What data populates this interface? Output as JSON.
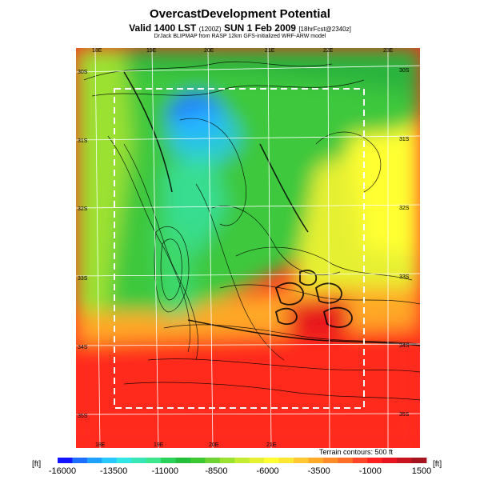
{
  "header": {
    "title": "OvercastDevelopment Potential",
    "valid_label": "Valid 1400 LST",
    "valid_code": "(1200Z)",
    "valid_date": "SUN 1 Feb 2009",
    "forecast_code": "[18hrFcst@2340z]",
    "credit": "DrJack BLIPMAP from RASP 12km GFS-initialized WRF-ARW model"
  },
  "map": {
    "lon_labels_top": [
      "18E",
      "19E",
      "20E",
      "21E",
      "22E",
      "23E"
    ],
    "lon_labels_bottom": [
      "18E",
      "19E",
      "20E",
      "21E"
    ],
    "lat_labels_left": [
      "30S",
      "31S",
      "32S",
      "33S",
      "34S",
      "35S"
    ],
    "lat_labels_right": [
      "30S",
      "31S",
      "32S",
      "33S",
      "34S",
      "35S"
    ]
  },
  "terrain_note": "Terrain contours: 500 ft",
  "legend": {
    "unit_left": "[ft]",
    "unit_right": "[ft]",
    "tick_labels": [
      "-16000",
      "-13500",
      "-11000",
      "-8500",
      "-6000",
      "-3500",
      "-1000",
      "1500"
    ],
    "colors": [
      "#1414ff",
      "#1e6eff",
      "#1ea0ff",
      "#28c8ff",
      "#32e6e6",
      "#37e6b4",
      "#3ce68c",
      "#2ad25a",
      "#22be3c",
      "#3cc832",
      "#6ed232",
      "#9be132",
      "#c3eb32",
      "#e6f032",
      "#ffff32",
      "#ffe632",
      "#ffc832",
      "#ffaa28",
      "#ff8c28",
      "#ff6e28",
      "#ff4628",
      "#ff2020",
      "#e6141e",
      "#c8141e",
      "#a5141e"
    ]
  }
}
